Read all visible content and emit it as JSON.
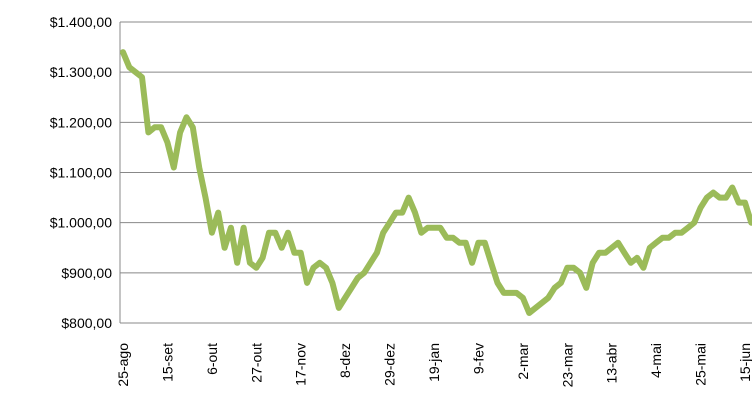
{
  "chart_data": {
    "type": "line",
    "categories": [
      "25-ago",
      null,
      null,
      null,
      null,
      null,
      null,
      "15-set",
      null,
      null,
      null,
      null,
      null,
      null,
      "6-out",
      null,
      null,
      null,
      null,
      null,
      null,
      "27-out",
      null,
      null,
      null,
      null,
      null,
      null,
      "17-nov",
      null,
      null,
      null,
      null,
      null,
      null,
      "8-dez",
      null,
      null,
      null,
      null,
      null,
      null,
      "29-dez",
      null,
      null,
      null,
      null,
      null,
      null,
      "19-jan",
      null,
      null,
      null,
      null,
      null,
      null,
      "9-fev",
      null,
      null,
      null,
      null,
      null,
      null,
      "2-mar",
      null,
      null,
      null,
      null,
      null,
      null,
      "23-mar",
      null,
      null,
      null,
      null,
      null,
      null,
      "13-abr",
      null,
      null,
      null,
      null,
      null,
      null,
      "4-mai",
      null,
      null,
      null,
      null,
      null,
      null,
      "25-mai",
      null,
      null,
      null,
      null,
      null,
      null,
      "15-jun",
      null
    ],
    "values": [
      1340,
      1310,
      1300,
      1290,
      1180,
      1190,
      1190,
      1160,
      1110,
      1180,
      1210,
      1190,
      1110,
      1050,
      980,
      1020,
      950,
      990,
      920,
      990,
      920,
      910,
      930,
      980,
      980,
      950,
      980,
      940,
      940,
      880,
      910,
      920,
      910,
      880,
      830,
      850,
      870,
      890,
      900,
      920,
      940,
      980,
      1000,
      1020,
      1020,
      1050,
      1020,
      980,
      990,
      990,
      990,
      970,
      970,
      960,
      960,
      920,
      960,
      960,
      920,
      880,
      860,
      860,
      860,
      850,
      820,
      830,
      840,
      850,
      870,
      880,
      910,
      910,
      900,
      870,
      920,
      940,
      940,
      950,
      960,
      940,
      920,
      930,
      910,
      950,
      960,
      970,
      970,
      980,
      980,
      990,
      1000,
      1030,
      1050,
      1060,
      1050,
      1050,
      1070,
      1040,
      1040,
      1000
    ],
    "color": "#9bbb59",
    "ylim": [
      800,
      1400
    ],
    "yticks": [
      {
        "value": 800,
        "label": "$800,00"
      },
      {
        "value": 900,
        "label": "$900,00"
      },
      {
        "value": 1000,
        "label": "$1.000,00"
      },
      {
        "value": 1100,
        "label": "$1.100,00"
      },
      {
        "value": 1200,
        "label": "$1.200,00"
      },
      {
        "value": 1300,
        "label": "$1.300,00"
      },
      {
        "value": 1400,
        "label": "$1.400,00"
      }
    ],
    "grid": true
  }
}
